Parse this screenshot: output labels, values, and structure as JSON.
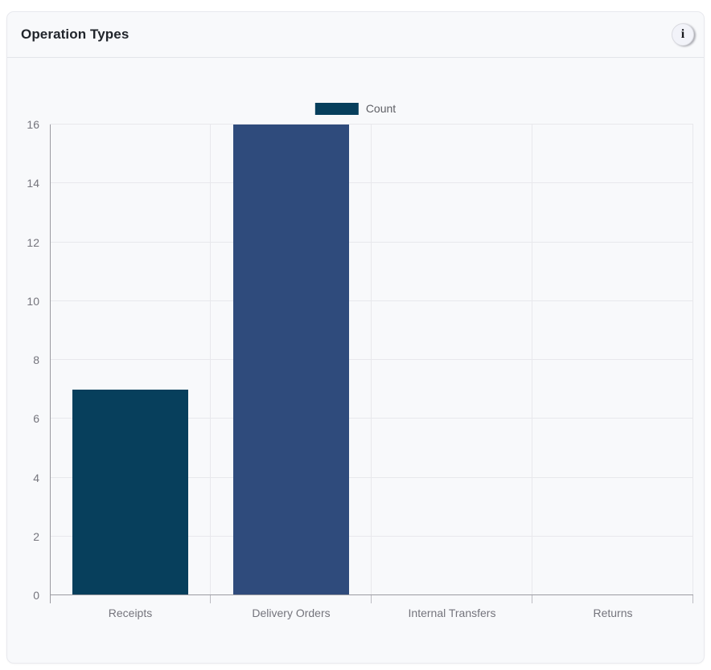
{
  "card": {
    "title": "Operation Types",
    "info_icon_glyph": "i"
  },
  "chart_data": {
    "type": "bar",
    "title": "Operation Types",
    "categories": [
      "Receipts",
      "Delivery Orders",
      "Internal Transfers",
      "Returns"
    ],
    "series": [
      {
        "name": "Count",
        "values": [
          7,
          16,
          0,
          0
        ]
      }
    ],
    "bar_colors": [
      "#073f5c",
      "#2f4b7c"
    ],
    "legend": {
      "label": "Count",
      "position": "top",
      "color": "#073f5c"
    },
    "xlabel": "",
    "ylabel": "",
    "ylim": [
      0,
      16
    ],
    "yticks": [
      0,
      2,
      4,
      6,
      8,
      10,
      12,
      14,
      16
    ],
    "grid": true
  }
}
